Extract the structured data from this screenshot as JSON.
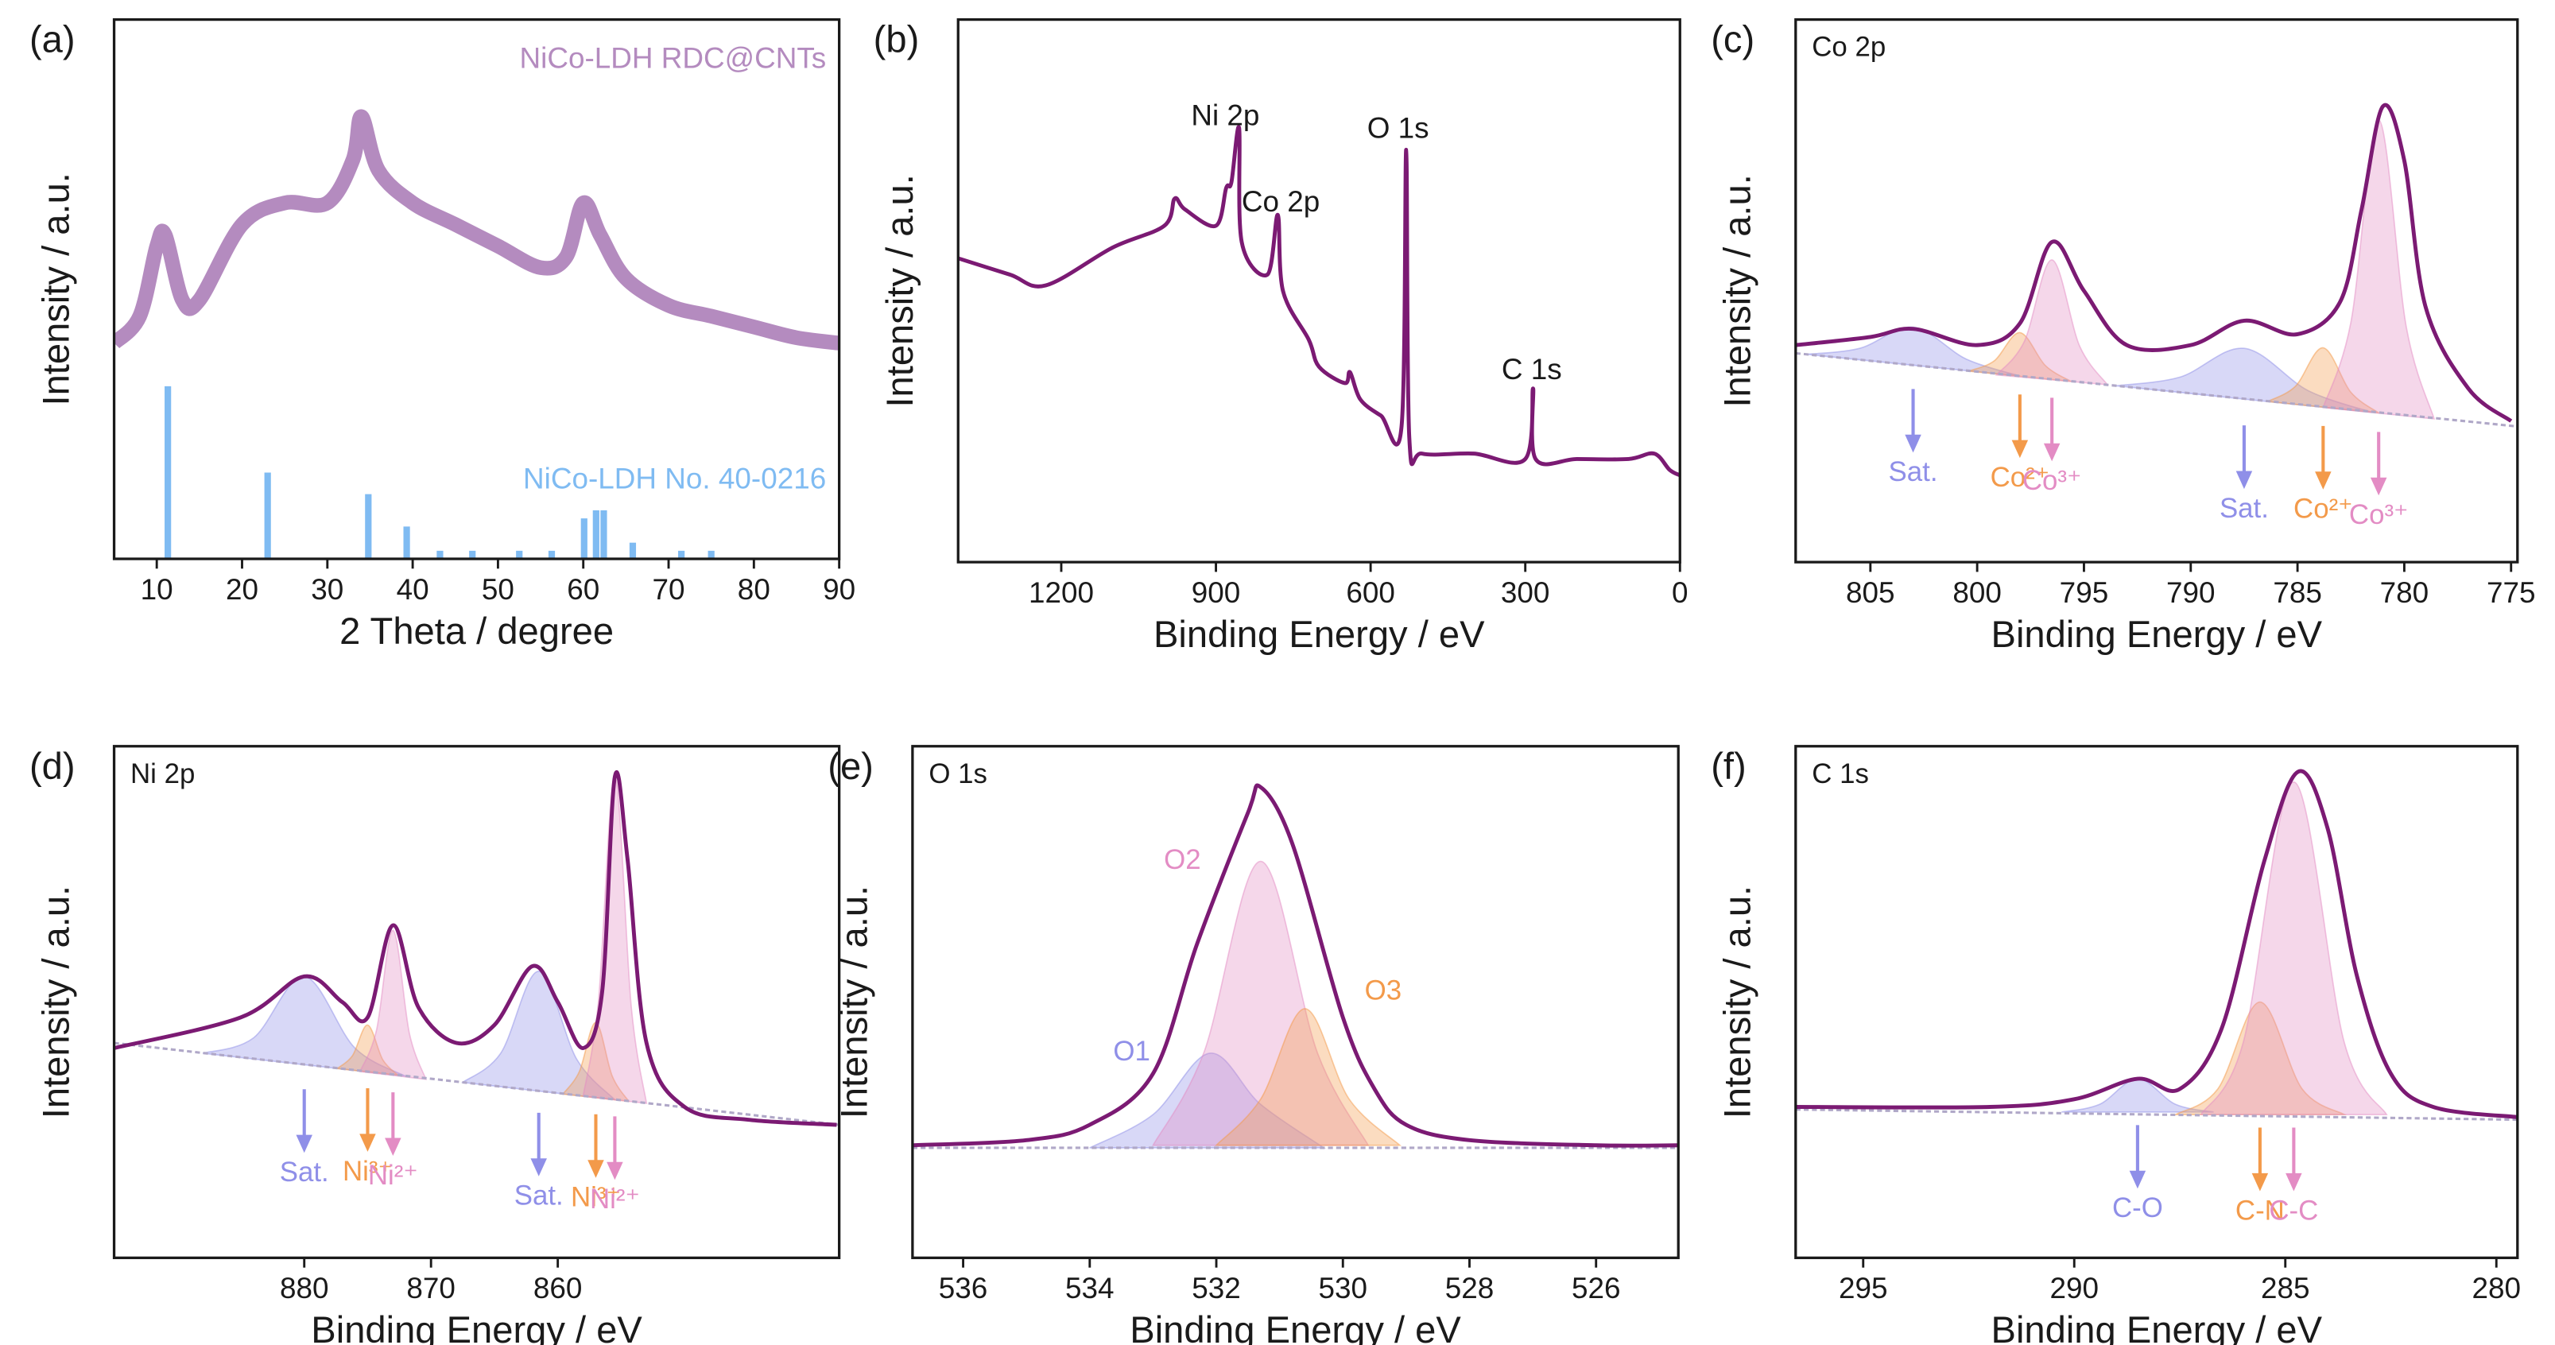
{
  "chart_data": [
    {
      "type": "line",
      "panel_label": "(a)",
      "x_label": "2 Theta / degree",
      "y_label": "Intensity / a.u.",
      "xlim": [
        5,
        90
      ],
      "ylim": [
        0,
        100
      ],
      "xticks": [
        10,
        20,
        30,
        40,
        50,
        60,
        70,
        80,
        90
      ],
      "series": [
        {
          "name": "NiCo-LDH RDC@CNTs",
          "color": "#b48bbf",
          "x": [
            5,
            8,
            10,
            11,
            13,
            15,
            20,
            25,
            30,
            33,
            34,
            36,
            40,
            45,
            50,
            55,
            58,
            60,
            62,
            65,
            70,
            75,
            80,
            85,
            90
          ],
          "values": [
            40,
            45,
            58,
            60,
            48,
            48,
            62,
            66,
            66,
            74,
            82,
            72,
            66,
            62,
            58,
            54,
            56,
            66,
            60,
            52,
            47,
            45,
            43,
            41,
            40
          ]
        },
        {
          "name": "NiCo-LDH No. 40-0216",
          "type": "bar",
          "color": "#7fbbf2",
          "x": [
            11.3,
            23,
            34.8,
            39.3,
            43.2,
            47,
            52.5,
            56.3,
            60.1,
            61.5,
            62.4,
            65.8,
            71.5,
            75
          ],
          "values": [
            32,
            16,
            12,
            6,
            1.5,
            1.5,
            1.5,
            1.5,
            7.5,
            9,
            9,
            3,
            1.5,
            1.5
          ]
        }
      ]
    },
    {
      "type": "line",
      "panel_label": "(b)",
      "x_label": "Binding Energy / eV",
      "y_label": "Intensity / a.u.",
      "xlim": [
        1400,
        0
      ],
      "ylim": [
        0,
        100
      ],
      "xticks": [
        1200,
        900,
        600,
        300,
        0
      ],
      "annotations": [
        "Ni 2p",
        "Co 2p",
        "O 1s",
        "C 1s"
      ],
      "series": [
        {
          "color": "#7b1a73",
          "x": [
            1400,
            1300,
            1230,
            1100,
            1000,
            980,
            960,
            900,
            880,
            870,
            855,
            850,
            800,
            780,
            770,
            720,
            700,
            650,
            640,
            620,
            580,
            540,
            531,
            525,
            500,
            400,
            300,
            285,
            280,
            200,
            100,
            50,
            20,
            0
          ],
          "values": [
            56,
            53,
            51,
            58,
            62,
            67,
            65,
            62,
            69,
            70,
            80,
            59,
            53,
            64,
            50,
            41,
            36,
            33,
            35,
            30,
            27,
            25,
            76,
            23,
            20,
            20,
            19,
            32,
            19,
            19,
            19,
            20,
            17,
            16
          ]
        }
      ]
    },
    {
      "type": "line",
      "panel_label": "(c)",
      "title": "Co 2p",
      "x_label": "Binding Energy / eV",
      "y_label": "Intensity / a.u.",
      "xlim": [
        808.5,
        774.7
      ],
      "ylim": [
        0,
        100
      ],
      "xticks": [
        805,
        800,
        795,
        790,
        785,
        780,
        775
      ],
      "series": [
        {
          "name": "Sat.",
          "fill": true,
          "color": "#8f8fe8",
          "x": [
            808,
            805.5,
            803,
            800.5,
            798
          ],
          "values": [
            38.3,
            39.4,
            43.3,
            37.4,
            34.3
          ]
        },
        {
          "name": "Co²⁺",
          "fill": true,
          "color": "#f39a4a",
          "x": [
            800.4,
            799.2,
            798,
            796.8,
            795.6
          ],
          "values": [
            35.2,
            37.1,
            42.3,
            36.2,
            33.3
          ]
        },
        {
          "name": "Co³⁺",
          "fill": true,
          "color": "#e38cc4",
          "x": [
            799.1,
            797.8,
            796.5,
            795.2,
            793.9
          ],
          "values": [
            34.5,
            40.6,
            55.7,
            39.8,
            32.7
          ]
        },
        {
          "name": "Sat.",
          "fill": true,
          "color": "#8f8fe8",
          "x": [
            793.5,
            790.5,
            787.5,
            784.5,
            781.5
          ],
          "values": [
            32.5,
            34.1,
            39.4,
            31.6,
            27.6
          ]
        },
        {
          "name": "Co²⁺",
          "fill": true,
          "color": "#f39a4a",
          "x": [
            786.4,
            785.1,
            783.8,
            782.5,
            781.2
          ],
          "values": [
            29.6,
            32.4,
            39.5,
            31.3,
            27.5
          ]
        },
        {
          "name": "Co³⁺",
          "fill": true,
          "color": "#e38cc4",
          "x": [
            783.8,
            782.5,
            781.2,
            779.9,
            778.6
          ],
          "values": [
            28.5,
            44.2,
            81.5,
            43.2,
            26.4
          ]
        },
        {
          "color": "#b0a8c8",
          "x": [
            808.5,
            774.7
          ],
          "values": [
            38.5,
            25
          ]
        },
        {
          "color": "#7b1a73",
          "x": [
            808.5,
            805,
            803,
            800,
            798,
            796.5,
            795,
            793,
            790,
            787.5,
            785,
            783,
            782,
            781,
            780,
            779,
            777,
            775
          ],
          "values": [
            40,
            41.5,
            43,
            40,
            44,
            59,
            50,
            40,
            40,
            44.5,
            42,
            48,
            65,
            84,
            74,
            47,
            32,
            26
          ]
        }
      ]
    },
    {
      "type": "line",
      "panel_label": "(d)",
      "title": "Ni 2p",
      "x_label": "Binding Energy / eV",
      "y_label": "Intensity / a.u.",
      "xlim": [
        895,
        837.8
      ],
      "ylim": [
        0,
        100
      ],
      "xticks": [
        880,
        870,
        860
      ],
      "series": [
        {
          "name": "Sat.",
          "fill": true,
          "color": "#8f8fe8",
          "x": [
            888,
            884,
            880,
            876,
            872
          ],
          "values": [
            40,
            43,
            55,
            41,
            35.5
          ]
        },
        {
          "name": "Ni³⁺",
          "fill": true,
          "color": "#f39a4a",
          "x": [
            877.4,
            876.2,
            875,
            873.8,
            872.6
          ],
          "values": [
            37,
            39.5,
            45.5,
            38.7,
            35.7
          ]
        },
        {
          "name": "Ni²⁺",
          "fill": true,
          "color": "#e38cc4",
          "x": [
            875.6,
            874.3,
            873,
            871.7,
            870.4
          ],
          "values": [
            36.4,
            44.5,
            64,
            43.8,
            34.9
          ]
        },
        {
          "name": "Sat.",
          "fill": true,
          "color": "#8f8fe8",
          "x": [
            867.5,
            864.5,
            861.5,
            858.5,
            855.5
          ],
          "values": [
            34.3,
            40,
            56,
            38.8,
            30.9
          ]
        },
        {
          "name": "Ni³⁺",
          "fill": true,
          "color": "#f39a4a",
          "x": [
            859.6,
            858.3,
            857,
            855.7,
            854.4
          ],
          "values": [
            32,
            36.4,
            46,
            35.5,
            30.6
          ]
        },
        {
          "name": "Ni²⁺",
          "fill": true,
          "color": "#e38cc4",
          "x": [
            858,
            856.8,
            855.5,
            854.2,
            853
          ],
          "values": [
            31.6,
            50,
            94,
            49,
            30.2
          ]
        },
        {
          "color": "#b0a8c8",
          "x": [
            895,
            837.8
          ],
          "values": [
            42,
            26
          ]
        },
        {
          "color": "#7b1a73",
          "x": [
            895,
            885,
            880,
            877,
            875,
            873,
            871,
            868,
            865,
            862,
            860,
            858,
            856.5,
            855.5,
            854.5,
            853,
            850,
            845,
            838
          ],
          "values": [
            41,
            47,
            55,
            50,
            47,
            65,
            49,
            42,
            45.5,
            57,
            50,
            41,
            52,
            94,
            78,
            42,
            29.5,
            27,
            26
          ]
        }
      ]
    },
    {
      "type": "line",
      "panel_label": "(e)",
      "title": "O 1s",
      "x_label": "Binding Energy / eV",
      "y_label": "Intensity / a.u.",
      "xlim": [
        536.8,
        524.7
      ],
      "ylim": [
        0,
        100
      ],
      "xticks": [
        536,
        534,
        532,
        530,
        528,
        526
      ],
      "series": [
        {
          "name": "O1",
          "fill": true,
          "label_side": "left",
          "color": "#8f8fe8",
          "x": [
            534,
            533,
            532.1,
            531.3,
            530.3
          ],
          "values": [
            21.5,
            28,
            40,
            30,
            21.5
          ]
        },
        {
          "name": "O2",
          "fill": true,
          "label_side": "left",
          "color": "#e38cc4",
          "x": [
            533,
            532.2,
            531.3,
            530.4,
            529.6
          ],
          "values": [
            22,
            40,
            77.5,
            40,
            22
          ]
        },
        {
          "name": "O3",
          "fill": true,
          "label_side": "right",
          "color": "#f39a4a",
          "x": [
            532,
            531.3,
            530.6,
            529.9,
            529.1
          ],
          "values": [
            22,
            31,
            48.7,
            31,
            22
          ]
        },
        {
          "color": "#b0a8c8",
          "x": [
            536.8,
            524.7
          ],
          "values": [
            21.5,
            21.5
          ]
        },
        {
          "color": "#7b1a73",
          "x": [
            536.8,
            535,
            534,
            533,
            532.3,
            531.5,
            531.3,
            530.8,
            530,
            529.5,
            529,
            528,
            526,
            524.7
          ],
          "values": [
            22,
            23,
            26,
            36,
            61.5,
            87,
            92,
            81,
            47,
            33,
            26,
            23,
            22,
            22
          ]
        }
      ]
    },
    {
      "type": "line",
      "panel_label": "(f)",
      "title": "C 1s",
      "x_label": "Binding Energy / eV",
      "y_label": "Intensity / a.u.",
      "xlim": [
        296.6,
        279.5
      ],
      "ylim": [
        0,
        100
      ],
      "xticks": [
        295,
        290,
        285,
        280
      ],
      "series": [
        {
          "name": "C-O",
          "fill": true,
          "color": "#8f8fe8",
          "x": [
            290.3,
            289.4,
            288.5,
            287.6,
            286.7
          ],
          "values": [
            28.5,
            30,
            35,
            30,
            28.5
          ]
        },
        {
          "name": "C-N",
          "fill": true,
          "color": "#f39a4a",
          "x": [
            287.6,
            286.6,
            285.6,
            284.6,
            283.6
          ],
          "values": [
            28,
            33,
            50,
            33,
            28
          ]
        },
        {
          "name": "C-C",
          "fill": true,
          "color": "#e38cc4",
          "x": [
            287,
            286,
            284.8,
            283.6,
            282.6
          ],
          "values": [
            28,
            42,
            93,
            42,
            28
          ]
        },
        {
          "color": "#b0a8c8",
          "x": [
            296.6,
            279.5
          ],
          "values": [
            29,
            27
          ]
        },
        {
          "color": "#7b1a73",
          "x": [
            296.6,
            292,
            290,
            288.5,
            287.5,
            286.5,
            285.5,
            284.7,
            284,
            283.3,
            282.5,
            281.5,
            279.5
          ],
          "values": [
            29.5,
            29.5,
            31,
            35,
            33,
            45,
            77.5,
            95,
            84,
            55,
            36,
            29.5,
            27.5
          ]
        }
      ]
    }
  ]
}
